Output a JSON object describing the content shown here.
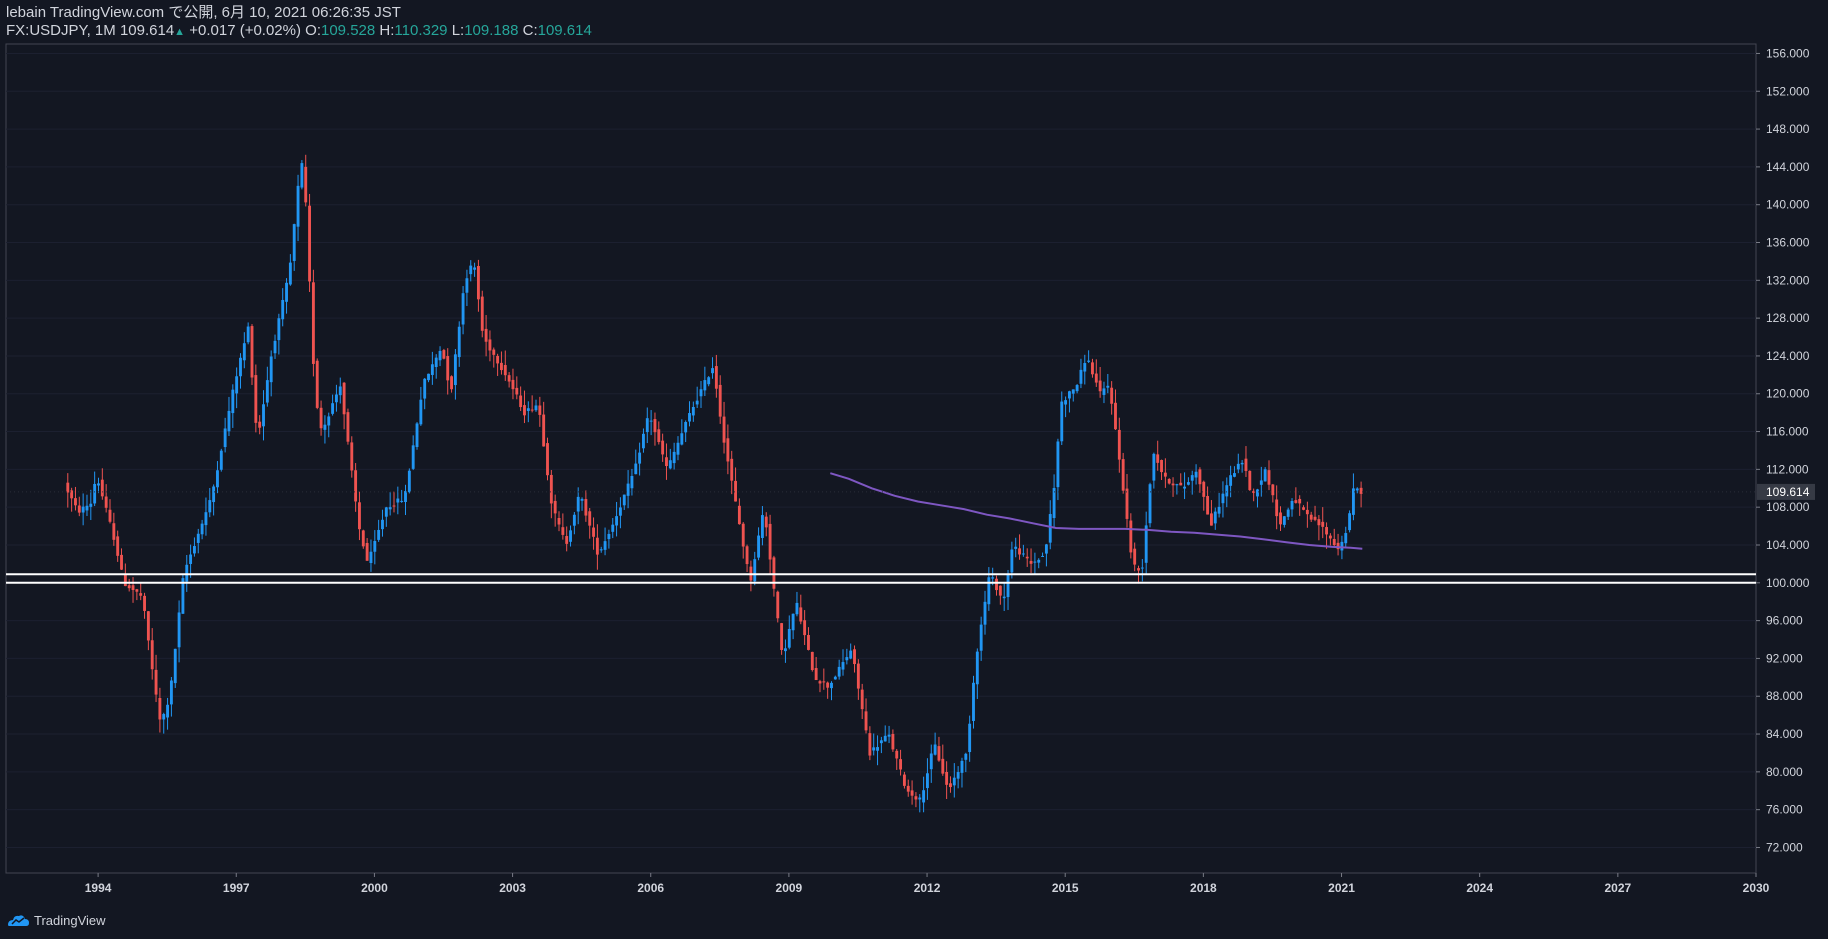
{
  "header": {
    "publisher": "lebain TradingView.com で公開, 6月 10, 2021 06:26:35 JST",
    "symbol": "FX:USDJPY, 1M",
    "last": "109.614",
    "change_arrow": "▲",
    "change": "+0.017 (+0.02%)",
    "o_label": "O:",
    "o_value": "109.528",
    "h_label": "H:",
    "h_value": "110.329",
    "l_label": "L:",
    "l_value": "109.188",
    "c_label": "C:",
    "c_value": "109.614"
  },
  "footer": {
    "brand": "TradingView",
    "logo_icon": "tradingview-logo-icon"
  },
  "colors": {
    "background": "#131722",
    "up": "#2196f3",
    "down": "#ef5350",
    "ma": "#7e57c2",
    "level": "#ffffff",
    "axis_text": "#d1d4dc",
    "price_label_bg": "#363a45"
  },
  "chart_data": {
    "type": "candlestick",
    "symbol": "FX:USDJPY",
    "interval": "1M",
    "xlim": [
      1992.0,
      2030.0
    ],
    "ylim": [
      69.3,
      157.0
    ],
    "y_ticks": [
      72,
      76,
      80,
      84,
      88,
      92,
      96,
      100,
      104,
      108,
      112,
      116,
      120,
      124,
      128,
      132,
      136,
      140,
      144,
      148,
      152,
      156
    ],
    "y_tick_labels": [
      "72.000",
      "76.000",
      "80.000",
      "84.000",
      "88.000",
      "92.000",
      "96.000",
      "100.000",
      "104.000",
      "108.000",
      "112.000",
      "116.000",
      "120.000",
      "124.000",
      "128.000",
      "132.000",
      "136.000",
      "140.000",
      "144.000",
      "148.000",
      "152.000",
      "156.000"
    ],
    "x_ticks": [
      1994,
      1997,
      2000,
      2003,
      2006,
      2009,
      2012,
      2015,
      2018,
      2021,
      2024,
      2027,
      2030
    ],
    "x_tick_labels": [
      "1994",
      "1997",
      "2000",
      "2003",
      "2006",
      "2009",
      "2012",
      "2015",
      "2018",
      "2021",
      "2024",
      "2027",
      "2030"
    ],
    "last_price": 109.614,
    "last_price_label": "109.614",
    "horizontal_levels": [
      100.0,
      100.9
    ],
    "price_anchors": [
      [
        1993.3,
        110.5
      ],
      [
        1993.6,
        107.5
      ],
      [
        1993.9,
        108.5
      ],
      [
        1994.0,
        111.5
      ],
      [
        1994.4,
        104.5
      ],
      [
        1994.6,
        100.0
      ],
      [
        1995.0,
        98.5
      ],
      [
        1995.3,
        88.0
      ],
      [
        1995.4,
        85.0
      ],
      [
        1995.6,
        88.0
      ],
      [
        1995.9,
        101.0
      ],
      [
        1996.5,
        109.0
      ],
      [
        1997.0,
        121.0
      ],
      [
        1997.3,
        127.0
      ],
      [
        1997.5,
        115.0
      ],
      [
        1997.8,
        124.0
      ],
      [
        1998.2,
        133.0
      ],
      [
        1998.45,
        145.0
      ],
      [
        1998.55,
        140.0
      ],
      [
        1998.75,
        120.0
      ],
      [
        1998.9,
        116.0
      ],
      [
        1999.3,
        121.0
      ],
      [
        1999.7,
        106.0
      ],
      [
        1999.9,
        102.0
      ],
      [
        2000.3,
        108.0
      ],
      [
        2000.7,
        109.0
      ],
      [
        2001.1,
        121.0
      ],
      [
        2001.5,
        125.0
      ],
      [
        2001.7,
        120.0
      ],
      [
        2002.0,
        132.0
      ],
      [
        2002.2,
        134.0
      ],
      [
        2002.4,
        126.0
      ],
      [
        2002.9,
        122.0
      ],
      [
        2003.3,
        118.0
      ],
      [
        2003.6,
        119.0
      ],
      [
        2003.9,
        108.0
      ],
      [
        2004.2,
        104.0
      ],
      [
        2004.5,
        109.5
      ],
      [
        2004.9,
        103.0
      ],
      [
        2005.2,
        106.0
      ],
      [
        2005.7,
        112.0
      ],
      [
        2006.0,
        118.0
      ],
      [
        2006.4,
        112.0
      ],
      [
        2006.9,
        118.0
      ],
      [
        2007.4,
        123.0
      ],
      [
        2007.6,
        116.0
      ],
      [
        2007.9,
        108.0
      ],
      [
        2008.2,
        100.0
      ],
      [
        2008.5,
        108.0
      ],
      [
        2008.9,
        92.0
      ],
      [
        2009.2,
        98.0
      ],
      [
        2009.6,
        90.0
      ],
      [
        2009.9,
        89.0
      ],
      [
        2010.4,
        93.0
      ],
      [
        2010.8,
        82.0
      ],
      [
        2011.2,
        84.0
      ],
      [
        2011.6,
        78.0
      ],
      [
        2011.9,
        77.0
      ],
      [
        2012.2,
        83.0
      ],
      [
        2012.5,
        78.0
      ],
      [
        2012.9,
        82.0
      ],
      [
        2013.1,
        92.0
      ],
      [
        2013.4,
        101.0
      ],
      [
        2013.7,
        98.0
      ],
      [
        2013.9,
        104.0
      ],
      [
        2014.3,
        102.0
      ],
      [
        2014.6,
        103.0
      ],
      [
        2014.8,
        110.0
      ],
      [
        2014.95,
        119.0
      ],
      [
        2015.3,
        121.0
      ],
      [
        2015.5,
        124.0
      ],
      [
        2015.8,
        120.0
      ],
      [
        2016.0,
        121.0
      ],
      [
        2016.3,
        110.0
      ],
      [
        2016.5,
        102.0
      ],
      [
        2016.7,
        101.0
      ],
      [
        2016.95,
        114.0
      ],
      [
        2017.2,
        111.0
      ],
      [
        2017.6,
        110.0
      ],
      [
        2017.9,
        112.0
      ],
      [
        2018.2,
        106.0
      ],
      [
        2018.6,
        111.0
      ],
      [
        2018.9,
        113.0
      ],
      [
        2019.1,
        109.0
      ],
      [
        2019.4,
        112.0
      ],
      [
        2019.7,
        106.0
      ],
      [
        2020.0,
        109.0
      ],
      [
        2020.3,
        107.0
      ],
      [
        2020.6,
        106.0
      ],
      [
        2020.9,
        104.0
      ],
      [
        2021.0,
        103.5
      ],
      [
        2021.2,
        106.5
      ],
      [
        2021.3,
        110.0
      ],
      [
        2021.45,
        109.6
      ]
    ],
    "moving_average": {
      "x": [
        2009.9,
        2010.3,
        2010.8,
        2011.3,
        2011.8,
        2012.3,
        2012.8,
        2013.3,
        2013.8,
        2014.3,
        2014.8,
        2015.3,
        2015.8,
        2016.3,
        2016.8,
        2017.3,
        2017.8,
        2018.3,
        2018.8,
        2019.3,
        2019.8,
        2020.3,
        2020.8,
        2021.2,
        2021.45
      ],
      "y": [
        111.6,
        111.0,
        110.0,
        109.2,
        108.6,
        108.2,
        107.8,
        107.2,
        106.8,
        106.3,
        105.8,
        105.7,
        105.7,
        105.7,
        105.6,
        105.4,
        105.3,
        105.1,
        104.9,
        104.6,
        104.3,
        104.0,
        103.8,
        103.7,
        103.6
      ]
    }
  }
}
